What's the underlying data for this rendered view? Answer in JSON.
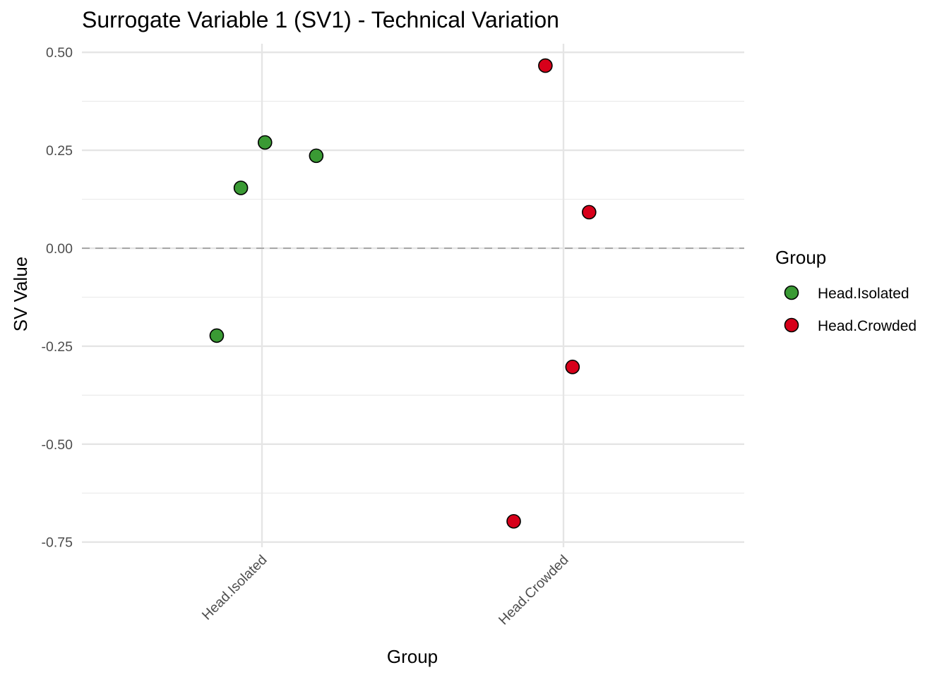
{
  "chart_data": {
    "type": "scatter",
    "title": "Surrogate Variable 1 (SV1) - Technical Variation",
    "xlabel": "Group",
    "ylabel": "SV Value",
    "categories": [
      "Head.Isolated",
      "Head.Crowded"
    ],
    "ylim": [
      -0.77,
      0.52
    ],
    "yticks": [
      0.5,
      0.25,
      0.0,
      -0.25,
      -0.5,
      -0.75
    ],
    "ytick_labels": [
      "0.50",
      "0.25",
      "0.00",
      "-0.25",
      "-0.50",
      "-0.75"
    ],
    "reference_line": {
      "y": 0.0,
      "style": "dashed"
    },
    "grid": true,
    "legend_position": "right",
    "legend_title": "Group",
    "series": [
      {
        "name": "Head.Isolated",
        "color": "#3a9a34",
        "points": [
          {
            "category": "Head.Isolated",
            "jitter": -0.07,
            "y": 0.154
          },
          {
            "category": "Head.Isolated",
            "jitter": 0.01,
            "y": 0.27
          },
          {
            "category": "Head.Isolated",
            "jitter": 0.18,
            "y": 0.236
          },
          {
            "category": "Head.Isolated",
            "jitter": -0.15,
            "y": -0.223
          }
        ]
      },
      {
        "name": "Head.Crowded",
        "color": "#d7001a",
        "points": [
          {
            "category": "Head.Crowded",
            "jitter": -0.06,
            "y": 0.466
          },
          {
            "category": "Head.Crowded",
            "jitter": 0.085,
            "y": 0.092
          },
          {
            "category": "Head.Crowded",
            "jitter": 0.03,
            "y": -0.303
          },
          {
            "category": "Head.Crowded",
            "jitter": -0.165,
            "y": -0.697
          }
        ]
      }
    ]
  }
}
